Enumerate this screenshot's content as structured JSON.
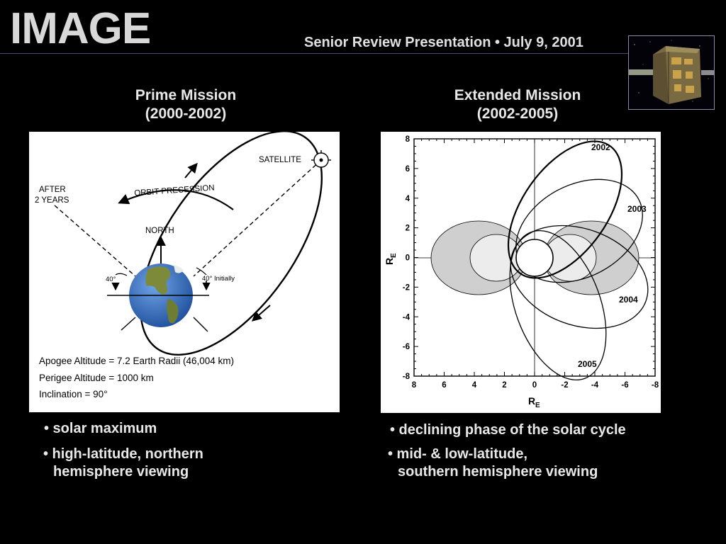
{
  "header": {
    "title": "IMAGE",
    "subtitle": "Senior Review Presentation • July 9, 2001"
  },
  "thumbnail": {
    "icon": "image-spacecraft-icon"
  },
  "prime": {
    "heading_line1": "Prime Mission",
    "heading_line2": "(2000-2002)",
    "diagram": {
      "satellite": "SATELLITE",
      "orbit_precession": "ORBIT PRECESSION",
      "after_line1": "AFTER",
      "after_line2": "2 YEARS",
      "north": "NORTH",
      "angle_left": "40°",
      "angle_right": "40° Initially",
      "apogee": "Apogee Altitude = 7.2 Earth Radii (46,004 km)",
      "perigee": "Perigee Altitude = 1000 km",
      "inclination": "Inclination = 90°"
    },
    "bullets": [
      {
        "line1": "• solar maximum",
        "line2": ""
      },
      {
        "line1": "• high-latitude, northern",
        "line2": "hemisphere viewing"
      }
    ]
  },
  "extended": {
    "heading_line1": "Extended Mission",
    "heading_line2": "(2002-2005)",
    "plot": {
      "y_label": "R",
      "y_label_sub": "E",
      "x_label": "R",
      "x_label_sub": "E",
      "y_ticks": [
        "8",
        "6",
        "4",
        "2",
        "0",
        "-2",
        "-4",
        "-6",
        "-8"
      ],
      "x_ticks": [
        "8",
        "6",
        "4",
        "2",
        "0",
        "-2",
        "-4",
        "-6",
        "-8"
      ],
      "orbit_labels": [
        "2002",
        "2003",
        "2004",
        "2005"
      ]
    },
    "bullets": [
      {
        "line1": "• declining phase of the solar cycle",
        "line2": ""
      },
      {
        "line1": "• mid- & low-latitude,",
        "line2": "southern hemisphere viewing"
      }
    ]
  }
}
